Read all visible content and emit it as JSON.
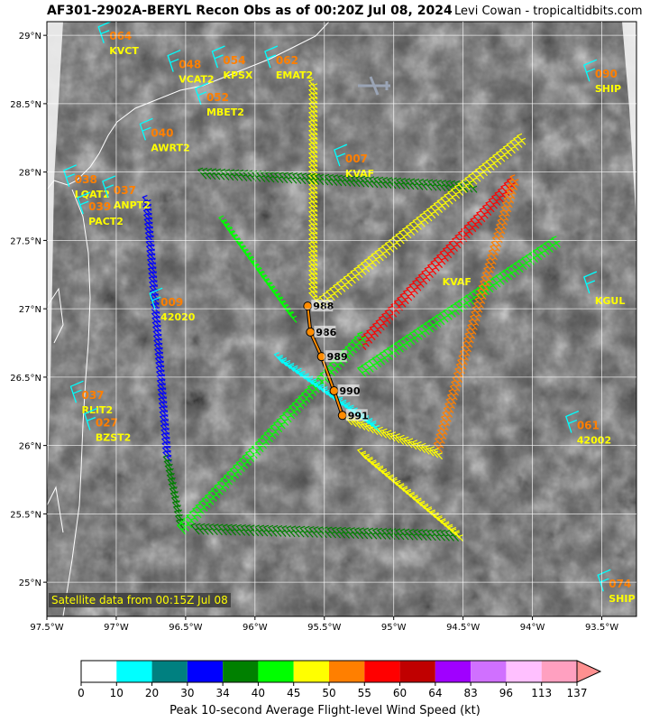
{
  "header": {
    "title": "AF301-2902A-BERYL Recon Obs as of 00:20Z Jul 08, 2024",
    "credit": "Levi Cowan - tropicaltidbits.com"
  },
  "map": {
    "lat_range": [
      24.75,
      29.1
    ],
    "lon_range": [
      -97.5,
      -93.25
    ],
    "lat_ticks": [
      "29°N",
      "28.5°N",
      "28°N",
      "27.5°N",
      "27°N",
      "26.5°N",
      "26°N",
      "25.5°N",
      "25°N"
    ],
    "lon_ticks": [
      "97.5°W",
      "97°W",
      "96.5°W",
      "96°W",
      "95.5°W",
      "95°W",
      "94.5°W",
      "94°W",
      "93.5°W"
    ],
    "gridlines": true
  },
  "stations": [
    {
      "id": "KVCT",
      "value": "064",
      "lon": -97.05,
      "lat": 28.93
    },
    {
      "id": "VCAT2",
      "value": "048",
      "lon": -96.55,
      "lat": 28.72
    },
    {
      "id": "KPSX",
      "value": "054",
      "lon": -96.23,
      "lat": 28.75
    },
    {
      "id": "EMAT2",
      "value": "062",
      "lon": -95.85,
      "lat": 28.75
    },
    {
      "id": "MBET2",
      "value": "052",
      "lon": -96.35,
      "lat": 28.48
    },
    {
      "id": "AWRT2",
      "value": "040",
      "lon": -96.75,
      "lat": 28.22
    },
    {
      "id": "LQAT2",
      "value": "038",
      "lon": -97.3,
      "lat": 27.88
    },
    {
      "id": "ANPT2",
      "value": "037",
      "lon": -97.02,
      "lat": 27.8
    },
    {
      "id": "PACT2",
      "value": "039",
      "lon": -97.2,
      "lat": 27.68
    },
    {
      "id": "42020",
      "value": "009",
      "lon": -96.68,
      "lat": 26.98
    },
    {
      "id": "RLIT2",
      "value": "037",
      "lon": -97.25,
      "lat": 26.3
    },
    {
      "id": "BZST2",
      "value": "027",
      "lon": -97.15,
      "lat": 26.1
    },
    {
      "id": "SHIP",
      "value": "090",
      "lon": -93.55,
      "lat": 28.65
    },
    {
      "id": "KGUL",
      "value": "",
      "lon": -93.55,
      "lat": 27.1
    },
    {
      "id": "42002",
      "value": "061",
      "lon": -93.68,
      "lat": 26.08
    },
    {
      "id": "SHIP",
      "value": "074",
      "lon": -93.45,
      "lat": 24.92
    },
    {
      "id": "KVAF",
      "value": "007",
      "lon": -95.35,
      "lat": 28.03
    }
  ],
  "center_fixes": [
    {
      "pressure": "988",
      "lon": -95.62,
      "lat": 27.02
    },
    {
      "pressure": "986",
      "lon": -95.6,
      "lat": 26.83
    },
    {
      "pressure": "989",
      "lon": -95.52,
      "lat": 26.65
    },
    {
      "pressure": "990",
      "lon": -95.43,
      "lat": 26.4
    },
    {
      "pressure": "991",
      "lon": -95.37,
      "lat": 26.22
    }
  ],
  "overlay_labels": {
    "kvaf_right": "KVAF"
  },
  "satellite_note": "Satellite data from 00:15Z Jul 08",
  "colorbar": {
    "label": "Peak 10-second Average Flight-level Wind Speed (kt)",
    "ticks": [
      "0",
      "10",
      "20",
      "30",
      "34",
      "40",
      "45",
      "50",
      "55",
      "60",
      "64",
      "83",
      "96",
      "113",
      "137"
    ],
    "colors": [
      "#ffffff",
      "#00ffff",
      "#008080",
      "#0000ff",
      "#008000",
      "#00ff00",
      "#ffff00",
      "#ff7f00",
      "#ff0000",
      "#c00000",
      "#a000ff",
      "#d070ff",
      "#ffc0ff",
      "#ffa0c0"
    ]
  },
  "flight_legs": [
    {
      "color": "#ffff00",
      "from": [
        -95.55,
        28.6
      ],
      "to": [
        -95.55,
        27.05
      ]
    },
    {
      "color": "#008000",
      "from": [
        -96.35,
        27.95
      ],
      "to": [
        -94.4,
        27.85
      ]
    },
    {
      "color": "#ffff00",
      "from": [
        -95.5,
        27.0
      ],
      "to": [
        -94.05,
        28.2
      ]
    },
    {
      "color": "#ff0000",
      "from": [
        -95.2,
        26.7
      ],
      "to": [
        -94.1,
        27.9
      ]
    },
    {
      "color": "#00ff00",
      "from": [
        -95.2,
        26.5
      ],
      "to": [
        -93.8,
        27.45
      ]
    },
    {
      "color": "#ff7f00",
      "from": [
        -94.1,
        27.9
      ],
      "to": [
        -94.65,
        25.95
      ]
    },
    {
      "color": "#ffff00",
      "from": [
        -95.3,
        26.15
      ],
      "to": [
        -94.65,
        25.9
      ]
    },
    {
      "color": "#00ff00",
      "from": [
        -95.7,
        26.9
      ],
      "to": [
        -96.2,
        27.6
      ]
    },
    {
      "color": "#0000ff",
      "from": [
        -96.75,
        27.75
      ],
      "to": [
        -96.6,
        25.85
      ]
    },
    {
      "color": "#008000",
      "from": [
        -96.6,
        25.85
      ],
      "to": [
        -96.5,
        25.35
      ]
    },
    {
      "color": "#00ff00",
      "from": [
        -96.5,
        25.35
      ],
      "to": [
        -95.2,
        26.75
      ]
    },
    {
      "color": "#008000",
      "from": [
        -96.4,
        25.35
      ],
      "to": [
        -94.5,
        25.3
      ]
    },
    {
      "color": "#ffff00",
      "from": [
        -95.2,
        25.9
      ],
      "to": [
        -94.5,
        25.3
      ]
    },
    {
      "color": "#00ffff",
      "from": [
        -95.8,
        26.6
      ],
      "to": [
        -95.1,
        26.1
      ]
    }
  ]
}
